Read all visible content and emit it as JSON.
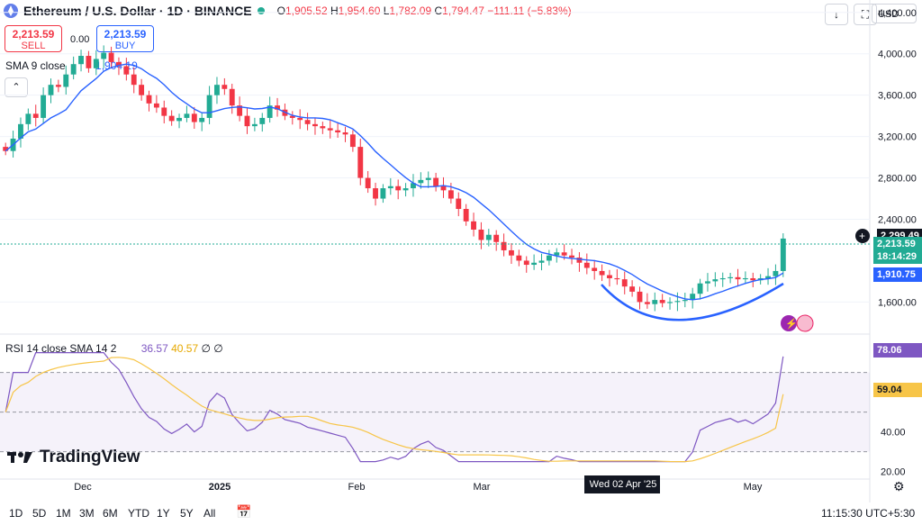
{
  "header": {
    "title": "Ethereum / U.S. Dollar · 1D · BINANCE",
    "open_label": "O",
    "open": "1,905.52",
    "high_label": "H",
    "high": "1,954.60",
    "low_label": "L",
    "low": "1,782.09",
    "close_label": "C",
    "close": "1,794.47",
    "change": "−111.11 (−5.83%)"
  },
  "trade": {
    "sell_price": "2,213.59",
    "sell_label": "SELL",
    "spread": "0.00",
    "buy_price": "2,213.59",
    "buy_label": "BUY"
  },
  "sma_legend": {
    "label": "SMA 9 close",
    "value": "1,904.19"
  },
  "rsi_legend": {
    "label": "RSI 14 close SMA 14 2",
    "rsi": "36.57",
    "sma": "40.57",
    "extra": "∅ ∅"
  },
  "currency": "USD",
  "price_labels": {
    "crosshair": "2,299.49",
    "current": "2,213.59",
    "countdown": "18:14:29",
    "sma": "1,910.75",
    "sma_hidden": "2,???"
  },
  "rsi_labels": {
    "rsi": "78.06",
    "sma": "59.04"
  },
  "time_labels": {
    "crosshair": "Wed 02 Apr '25"
  },
  "brand": "TradingView",
  "range_buttons": [
    "1D",
    "5D",
    "1M",
    "3M",
    "6M",
    "YTD",
    "1Y",
    "5Y",
    "All"
  ],
  "clock": "11:15:30 UTC+5:30",
  "colors": {
    "up": "#22ab94",
    "down": "#f23645",
    "sma": "#2962ff",
    "rsi": "#7e57c2",
    "rsi_sma": "#f7c548"
  },
  "chart_data": [
    {
      "type": "candlestick",
      "title": "Ethereum / U.S. Dollar · 1D · BINANCE",
      "y_ticks": [
        "4,400.00",
        "4,000.00",
        "3,600.00",
        "3,200.00",
        "2,800.00",
        "2,400.00",
        "1,600.00"
      ],
      "y_tick_values": [
        4400,
        4000,
        3600,
        3200,
        2800,
        2400,
        1600
      ],
      "x_ticks": [
        "Dec",
        "2025",
        "Feb",
        "Mar",
        "May"
      ],
      "ylim": [
        1290,
        4520
      ],
      "close": [
        3060,
        3180,
        3320,
        3420,
        3380,
        3600,
        3700,
        3680,
        3800,
        3900,
        3980,
        3860,
        3950,
        4010,
        3920,
        3880,
        3800,
        3700,
        3600,
        3520,
        3480,
        3400,
        3350,
        3380,
        3420,
        3340,
        3380,
        3600,
        3700,
        3660,
        3500,
        3400,
        3300,
        3320,
        3380,
        3500,
        3460,
        3400,
        3380,
        3360,
        3320,
        3300,
        3280,
        3260,
        3240,
        3220,
        3100,
        2800,
        2700,
        2600,
        2700,
        2720,
        2680,
        2700,
        2750,
        2780,
        2800,
        2720,
        2680,
        2600,
        2500,
        2380,
        2300,
        2200,
        2250,
        2180,
        2100,
        2050,
        2000,
        1960,
        1980,
        2000,
        2050,
        2080,
        2050,
        2030,
        1980,
        1930,
        1900,
        1860,
        1830,
        1820,
        1750,
        1700,
        1600,
        1580,
        1620,
        1590,
        1600,
        1610,
        1620,
        1680,
        1780,
        1800,
        1820,
        1830,
        1840,
        1820,
        1830,
        1810,
        1830,
        1850,
        1900,
        2213.59
      ],
      "rsi_yticks": [
        "40.00",
        "20.00"
      ],
      "rsi_ylim": [
        18,
        83
      ],
      "rsi_upper": 70,
      "rsi_lower": 30,
      "rsi_legend_values": {
        "rsi": 36.57,
        "sma": 40.57
      },
      "last_rsi": 78.06,
      "last_rsi_sma": 59.04
    }
  ]
}
